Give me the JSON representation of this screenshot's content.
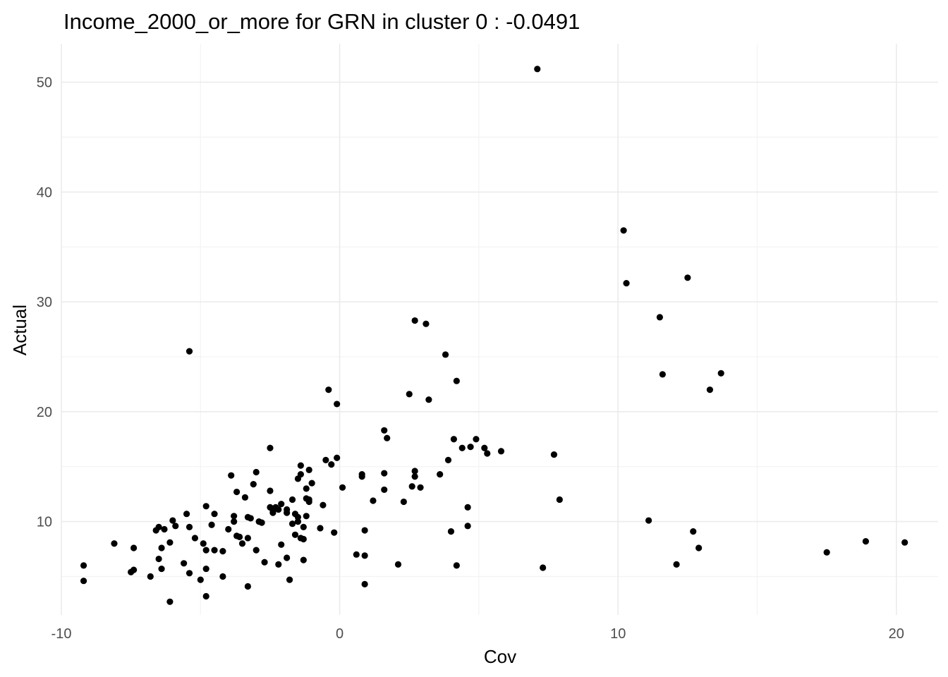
{
  "chart_data": {
    "type": "scatter",
    "title": "Income_2000_or_more for GRN in cluster 0 : -0.0491",
    "xlabel": "Cov",
    "ylabel": "Actual",
    "xlim": [
      -10,
      21.5
    ],
    "ylim": [
      1.5,
      53.5
    ],
    "x_ticks": [
      -10,
      0,
      10,
      20
    ],
    "x_tick_labels": [
      "-10",
      "0",
      "10",
      "20"
    ],
    "y_ticks": [
      10,
      20,
      30,
      40,
      50
    ],
    "y_tick_labels": [
      "10",
      "20",
      "30",
      "40",
      "50"
    ],
    "grid": true,
    "legend": "none",
    "point_color": "#000000",
    "points": [
      {
        "x": -9.2,
        "y": 6.0
      },
      {
        "x": -9.2,
        "y": 4.6
      },
      {
        "x": -8.1,
        "y": 8.0
      },
      {
        "x": -7.5,
        "y": 5.4
      },
      {
        "x": -7.4,
        "y": 5.6
      },
      {
        "x": -7.4,
        "y": 7.6
      },
      {
        "x": -6.8,
        "y": 5.0
      },
      {
        "x": -6.6,
        "y": 9.2
      },
      {
        "x": -6.5,
        "y": 9.5
      },
      {
        "x": -6.5,
        "y": 6.6
      },
      {
        "x": -6.4,
        "y": 7.6
      },
      {
        "x": -6.4,
        "y": 5.7
      },
      {
        "x": -6.3,
        "y": 9.3
      },
      {
        "x": -6.1,
        "y": 8.1
      },
      {
        "x": -6.0,
        "y": 10.1
      },
      {
        "x": -5.9,
        "y": 9.6
      },
      {
        "x": -6.1,
        "y": 2.7
      },
      {
        "x": -5.6,
        "y": 6.2
      },
      {
        "x": -5.5,
        "y": 10.7
      },
      {
        "x": -5.4,
        "y": 5.3
      },
      {
        "x": -5.4,
        "y": 9.5
      },
      {
        "x": -5.4,
        "y": 25.5
      },
      {
        "x": -5.2,
        "y": 8.5
      },
      {
        "x": -5.0,
        "y": 4.7
      },
      {
        "x": -4.9,
        "y": 8.0
      },
      {
        "x": -4.8,
        "y": 7.4
      },
      {
        "x": -4.8,
        "y": 5.7
      },
      {
        "x": -4.8,
        "y": 11.4
      },
      {
        "x": -4.8,
        "y": 3.2
      },
      {
        "x": -4.6,
        "y": 9.7
      },
      {
        "x": -4.5,
        "y": 10.7
      },
      {
        "x": -4.5,
        "y": 7.4
      },
      {
        "x": -4.2,
        "y": 7.3
      },
      {
        "x": -4.2,
        "y": 5.0
      },
      {
        "x": -4.0,
        "y": 9.3
      },
      {
        "x": -3.7,
        "y": 8.7
      },
      {
        "x": -3.9,
        "y": 14.2
      },
      {
        "x": -3.8,
        "y": 10.0
      },
      {
        "x": -3.8,
        "y": 10.5
      },
      {
        "x": -3.7,
        "y": 12.7
      },
      {
        "x": -3.6,
        "y": 8.6
      },
      {
        "x": -3.5,
        "y": 8.0
      },
      {
        "x": -3.4,
        "y": 12.2
      },
      {
        "x": -3.3,
        "y": 4.1
      },
      {
        "x": -3.3,
        "y": 8.5
      },
      {
        "x": -3.3,
        "y": 10.4
      },
      {
        "x": -3.2,
        "y": 10.3
      },
      {
        "x": -3.1,
        "y": 13.4
      },
      {
        "x": -3.0,
        "y": 14.5
      },
      {
        "x": -3.0,
        "y": 7.4
      },
      {
        "x": -2.9,
        "y": 10.0
      },
      {
        "x": -2.8,
        "y": 9.9
      },
      {
        "x": -2.7,
        "y": 6.3
      },
      {
        "x": -2.5,
        "y": 16.7
      },
      {
        "x": -2.5,
        "y": 12.8
      },
      {
        "x": -2.5,
        "y": 11.3
      },
      {
        "x": -2.4,
        "y": 10.8
      },
      {
        "x": -2.4,
        "y": 11.0
      },
      {
        "x": -2.3,
        "y": 11.3
      },
      {
        "x": -2.2,
        "y": 11.1
      },
      {
        "x": -2.2,
        "y": 6.1
      },
      {
        "x": -2.1,
        "y": 11.6
      },
      {
        "x": -2.1,
        "y": 7.9
      },
      {
        "x": -1.9,
        "y": 10.8
      },
      {
        "x": -1.9,
        "y": 11.1
      },
      {
        "x": -1.9,
        "y": 6.7
      },
      {
        "x": -1.8,
        "y": 4.7
      },
      {
        "x": -1.7,
        "y": 9.8
      },
      {
        "x": -1.7,
        "y": 12.0
      },
      {
        "x": -1.6,
        "y": 10.7
      },
      {
        "x": -1.6,
        "y": 8.8
      },
      {
        "x": -1.5,
        "y": 10.4
      },
      {
        "x": -1.5,
        "y": 10.0
      },
      {
        "x": -1.5,
        "y": 13.9
      },
      {
        "x": -1.4,
        "y": 14.3
      },
      {
        "x": -1.4,
        "y": 15.1
      },
      {
        "x": -1.4,
        "y": 8.5
      },
      {
        "x": -1.3,
        "y": 8.4
      },
      {
        "x": -1.3,
        "y": 9.5
      },
      {
        "x": -1.3,
        "y": 6.5
      },
      {
        "x": -1.2,
        "y": 10.5
      },
      {
        "x": -1.2,
        "y": 13.0
      },
      {
        "x": -1.2,
        "y": 12.1
      },
      {
        "x": -1.1,
        "y": 14.7
      },
      {
        "x": -1.1,
        "y": 11.8
      },
      {
        "x": -1.1,
        "y": 12.0
      },
      {
        "x": -1.0,
        "y": 13.5
      },
      {
        "x": -0.7,
        "y": 9.4
      },
      {
        "x": -0.6,
        "y": 11.5
      },
      {
        "x": -0.5,
        "y": 15.6
      },
      {
        "x": -0.4,
        "y": 22.0
      },
      {
        "x": -0.3,
        "y": 15.2
      },
      {
        "x": -0.2,
        "y": 9.0
      },
      {
        "x": -0.1,
        "y": 15.8
      },
      {
        "x": -0.1,
        "y": 20.7
      },
      {
        "x": 0.1,
        "y": 13.1
      },
      {
        "x": 0.6,
        "y": 7.0
      },
      {
        "x": 0.8,
        "y": 14.3
      },
      {
        "x": 0.8,
        "y": 14.1
      },
      {
        "x": 0.9,
        "y": 6.9
      },
      {
        "x": 0.9,
        "y": 9.2
      },
      {
        "x": 0.9,
        "y": 4.3
      },
      {
        "x": 1.2,
        "y": 11.9
      },
      {
        "x": 1.6,
        "y": 18.3
      },
      {
        "x": 1.6,
        "y": 14.4
      },
      {
        "x": 1.6,
        "y": 12.9
      },
      {
        "x": 1.7,
        "y": 17.6
      },
      {
        "x": 2.1,
        "y": 6.1
      },
      {
        "x": 2.3,
        "y": 11.8
      },
      {
        "x": 2.5,
        "y": 21.6
      },
      {
        "x": 2.6,
        "y": 13.2
      },
      {
        "x": 2.7,
        "y": 14.1
      },
      {
        "x": 2.7,
        "y": 14.6
      },
      {
        "x": 2.7,
        "y": 28.3
      },
      {
        "x": 2.9,
        "y": 13.1
      },
      {
        "x": 3.1,
        "y": 28.0
      },
      {
        "x": 3.2,
        "y": 21.1
      },
      {
        "x": 3.6,
        "y": 14.3
      },
      {
        "x": 3.8,
        "y": 25.2
      },
      {
        "x": 3.9,
        "y": 15.6
      },
      {
        "x": 4.0,
        "y": 9.1
      },
      {
        "x": 4.1,
        "y": 17.5
      },
      {
        "x": 4.2,
        "y": 22.8
      },
      {
        "x": 4.2,
        "y": 6.0
      },
      {
        "x": 4.4,
        "y": 16.7
      },
      {
        "x": 4.6,
        "y": 11.3
      },
      {
        "x": 4.6,
        "y": 9.6
      },
      {
        "x": 4.7,
        "y": 16.8
      },
      {
        "x": 4.9,
        "y": 17.5
      },
      {
        "x": 5.2,
        "y": 16.7
      },
      {
        "x": 5.3,
        "y": 16.2
      },
      {
        "x": 5.8,
        "y": 16.4
      },
      {
        "x": 7.1,
        "y": 51.2
      },
      {
        "x": 7.3,
        "y": 5.8
      },
      {
        "x": 7.7,
        "y": 16.1
      },
      {
        "x": 7.9,
        "y": 12.0
      },
      {
        "x": 10.2,
        "y": 36.5
      },
      {
        "x": 10.3,
        "y": 31.7
      },
      {
        "x": 11.1,
        "y": 10.1
      },
      {
        "x": 11.5,
        "y": 28.6
      },
      {
        "x": 11.6,
        "y": 23.4
      },
      {
        "x": 12.1,
        "y": 6.1
      },
      {
        "x": 12.5,
        "y": 32.2
      },
      {
        "x": 12.7,
        "y": 9.1
      },
      {
        "x": 12.9,
        "y": 7.6
      },
      {
        "x": 13.3,
        "y": 22.0
      },
      {
        "x": 13.7,
        "y": 23.5
      },
      {
        "x": 17.5,
        "y": 7.2
      },
      {
        "x": 18.9,
        "y": 8.2
      },
      {
        "x": 20.3,
        "y": 8.1
      }
    ]
  }
}
